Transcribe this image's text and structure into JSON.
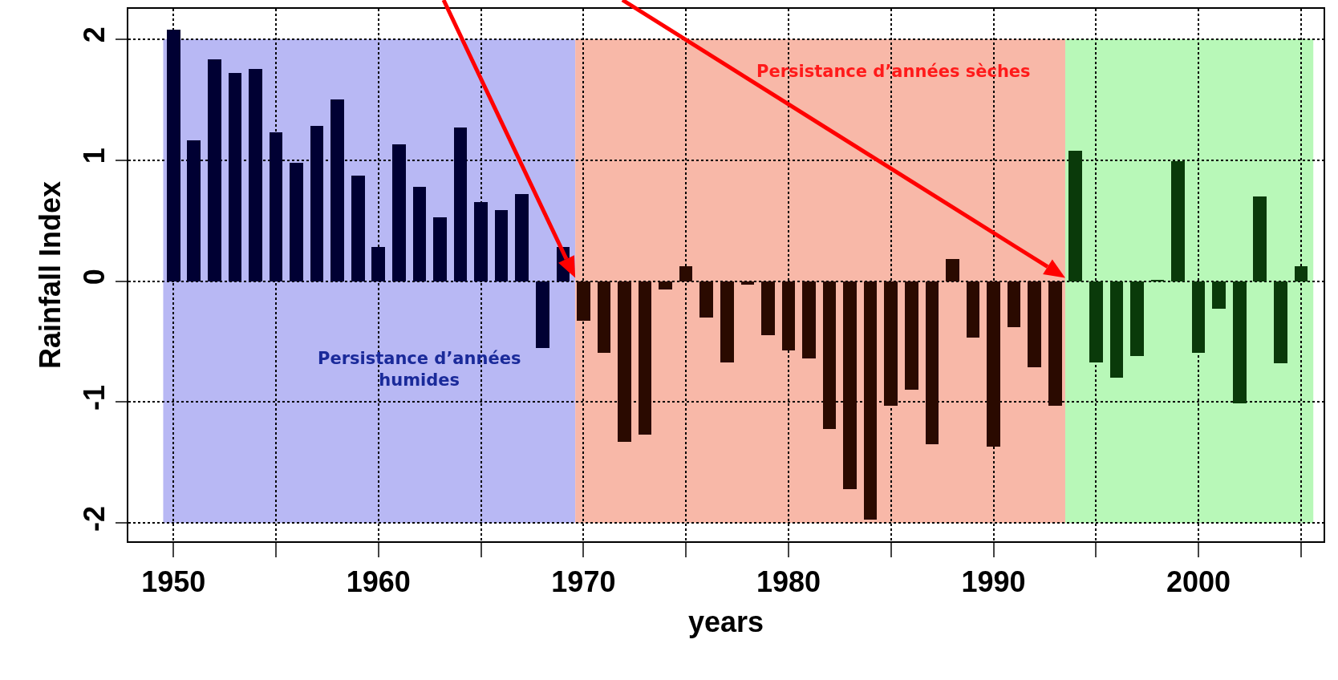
{
  "chart_data": {
    "type": "bar",
    "xlabel": "years",
    "ylabel": "Rainfall Index",
    "series": [
      {
        "color": "#000033",
        "x": [
          1950,
          1951,
          1952,
          1953,
          1954,
          1955,
          1956,
          1957,
          1958,
          1959,
          1960,
          1961,
          1962,
          1963,
          1964,
          1965,
          1966,
          1967,
          1968,
          1969
        ],
        "values": [
          2.08,
          1.16,
          1.83,
          1.72,
          1.75,
          1.23,
          0.98,
          1.28,
          1.5,
          0.87,
          0.28,
          1.13,
          0.78,
          0.53,
          1.27,
          0.65,
          0.59,
          0.72,
          -0.55,
          0.28
        ]
      },
      {
        "color": "#2a0a00",
        "x": [
          1970,
          1971,
          1972,
          1973,
          1974,
          1975,
          1976,
          1977,
          1978,
          1979,
          1980,
          1981,
          1982,
          1983,
          1984,
          1985,
          1986,
          1987,
          1988,
          1989,
          1990,
          1991,
          1992,
          1993
        ],
        "values": [
          -0.33,
          -0.59,
          -1.33,
          -1.27,
          -0.07,
          0.12,
          -0.3,
          -0.67,
          -0.03,
          -0.45,
          -0.57,
          -0.64,
          -1.22,
          -1.72,
          -1.97,
          -1.03,
          -0.9,
          -1.35,
          0.18,
          -0.47,
          -1.37,
          -0.38,
          -0.71,
          -1.03
        ]
      },
      {
        "color": "#0a3a0a",
        "x": [
          1994,
          1995,
          1996,
          1997,
          1998,
          1999,
          2000,
          2001,
          2002,
          2003,
          2004,
          2005
        ],
        "values": [
          1.08,
          -0.67,
          -0.8,
          -0.62,
          0.01,
          0.99,
          -0.59,
          -0.23,
          -1.01,
          0.7,
          -0.68,
          0.12
        ]
      }
    ],
    "bands": [
      {
        "axis": "x",
        "from": 1949.5,
        "to": 1969.6,
        "color": "#b8b8f4"
      },
      {
        "axis": "x",
        "from": 1969.6,
        "to": 1993.5,
        "color": "#f8b8a8"
      },
      {
        "axis": "x",
        "from": 1993.5,
        "to": 2005.6,
        "color": "#b8f8b8"
      }
    ],
    "annotations": [
      "Persistance d’années\nhumides",
      "Persistance d’années sèches"
    ],
    "xlim": [
      1947.8,
      2006.1
    ],
    "ylim": [
      -2.15,
      2.25
    ],
    "xticks": [
      1950,
      {
        "value": 1955,
        "label": null
      },
      1960,
      {
        "value": 1965,
        "label": null
      },
      1970,
      {
        "value": 1975,
        "label": null
      },
      1980,
      {
        "value": 1985,
        "label": null
      },
      1990,
      {
        "value": 1995,
        "label": null
      },
      2000,
      {
        "value": 2005,
        "label": null
      }
    ],
    "yticks": [
      -2,
      -1,
      0,
      1,
      2
    ],
    "grid": true
  }
}
